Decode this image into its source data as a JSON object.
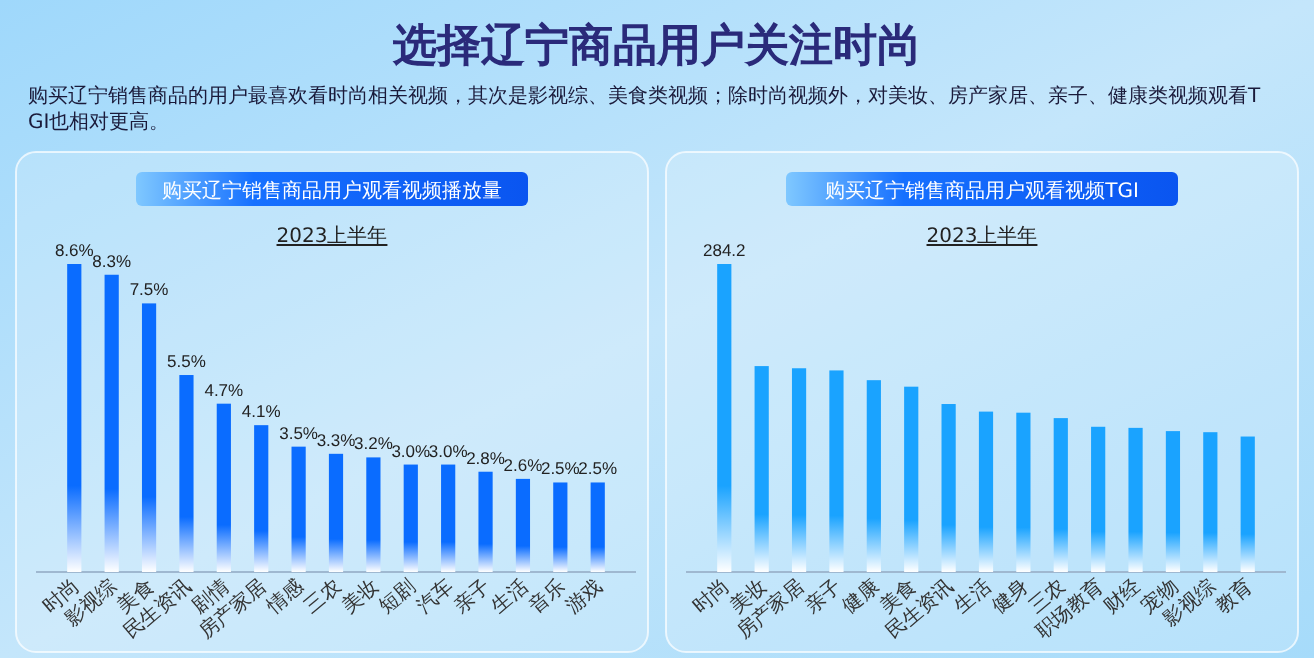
{
  "chart_data": [
    {
      "type": "other",
      "title": "选择辽宁商品用户关注时尚",
      "subtitle": "购买辽宁销售商品的用户最喜欢看时尚相关视频，其次是影视综、美食类视频；除时尚视频外，对美妆、房产家居、亲子、健康类视频观看TGI也相对更高。"
    },
    {
      "type": "bar",
      "title": "购买辽宁销售商品用户观看视频播放量",
      "subtitle": "2023上半年",
      "categories": [
        "时尚",
        "影视综",
        "美食",
        "民生资讯",
        "剧情",
        "房产家居",
        "情感",
        "三农",
        "美妆",
        "短剧",
        "汽车",
        "亲子",
        "生活",
        "音乐",
        "游戏"
      ],
      "values": [
        8.6,
        8.3,
        7.5,
        5.5,
        4.7,
        4.1,
        3.5,
        3.3,
        3.2,
        3.0,
        3.0,
        2.8,
        2.6,
        2.5,
        2.5
      ],
      "value_labels": [
        "8.6%",
        "8.3%",
        "7.5%",
        "5.5%",
        "4.7%",
        "4.1%",
        "3.5%",
        "3.3%",
        "3.2%",
        "3.0%",
        "3.0%",
        "2.8%",
        "2.6%",
        "2.5%",
        "2.5%"
      ],
      "color": "#0a6cff"
    },
    {
      "type": "bar",
      "title": "购买辽宁销售商品用户观看视频TGI",
      "subtitle": "2023上半年",
      "categories": [
        "时尚",
        "美妆",
        "房产家居",
        "亲子",
        "健康",
        "美食",
        "民生资讯",
        "生活",
        "健身",
        "三农",
        "职场教育",
        "财经",
        "宠物",
        "影视综",
        "教育"
      ],
      "values": [
        284.2,
        190,
        188,
        186,
        177,
        171,
        155,
        148,
        147,
        142,
        134,
        133,
        130,
        129,
        125
      ],
      "value_labels": [
        "284.2",
        null,
        null,
        null,
        null,
        null,
        null,
        null,
        null,
        null,
        null,
        null,
        null,
        null,
        null
      ],
      "color": "#1aa3ff"
    }
  ]
}
